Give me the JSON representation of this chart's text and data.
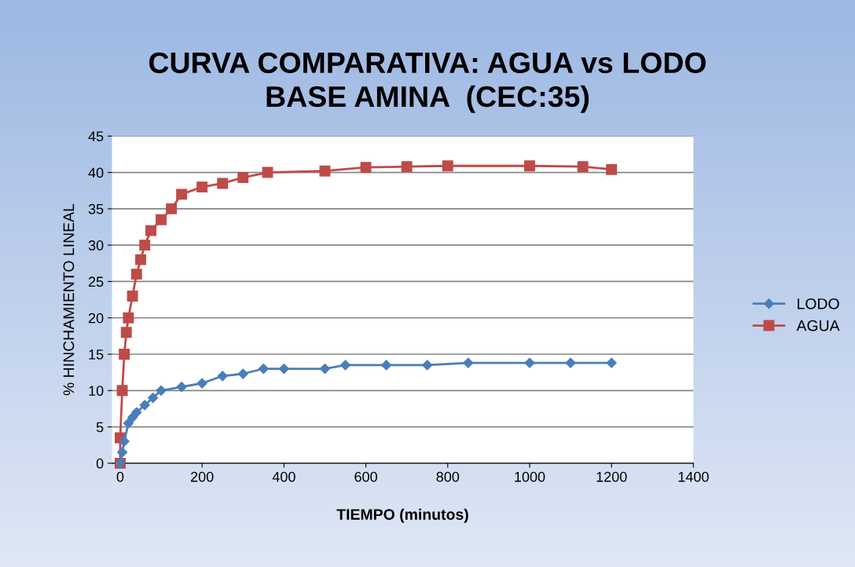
{
  "chart_data": {
    "type": "line",
    "title": "CURVA COMPARATIVA: AGUA vs LODO\nBASE AMINA  (CEC:35)",
    "xlabel": "TIEMPO (minutos)",
    "ylabel": "% HINCHAMIENTO LINEAL",
    "xlim": [
      -20,
      1400
    ],
    "xticks": [
      0,
      200,
      400,
      600,
      800,
      1000,
      1200,
      1400
    ],
    "ylim": [
      0,
      45
    ],
    "yticks": [
      0,
      5,
      10,
      15,
      20,
      25,
      30,
      35,
      40,
      45
    ],
    "grid": "y",
    "legend": "right",
    "series": [
      {
        "name": "LODO",
        "color": "#4a7ebb",
        "marker": "diamond",
        "x": [
          0,
          5,
          10,
          20,
          30,
          40,
          60,
          80,
          100,
          150,
          200,
          250,
          300,
          350,
          400,
          500,
          550,
          650,
          750,
          850,
          1000,
          1100,
          1200
        ],
        "values": [
          0,
          1.5,
          3,
          5.5,
          6.3,
          7,
          8,
          9,
          10,
          10.5,
          11,
          12,
          12.3,
          13,
          13,
          13,
          13.5,
          13.5,
          13.5,
          13.8,
          13.8,
          13.8,
          13.8
        ]
      },
      {
        "name": "AGUA",
        "color": "#be4b48",
        "marker": "square",
        "x": [
          0,
          0,
          5,
          10,
          15,
          20,
          30,
          40,
          50,
          60,
          75,
          100,
          125,
          150,
          200,
          250,
          300,
          360,
          500,
          600,
          700,
          800,
          1000,
          1130,
          1200
        ],
        "values": [
          0,
          3.5,
          10,
          15,
          18,
          20,
          23,
          26,
          28,
          30,
          32,
          33.5,
          35,
          37,
          38,
          38.5,
          39.3,
          40,
          40.2,
          40.7,
          40.8,
          40.9,
          40.9,
          40.8,
          40.4
        ]
      }
    ]
  }
}
